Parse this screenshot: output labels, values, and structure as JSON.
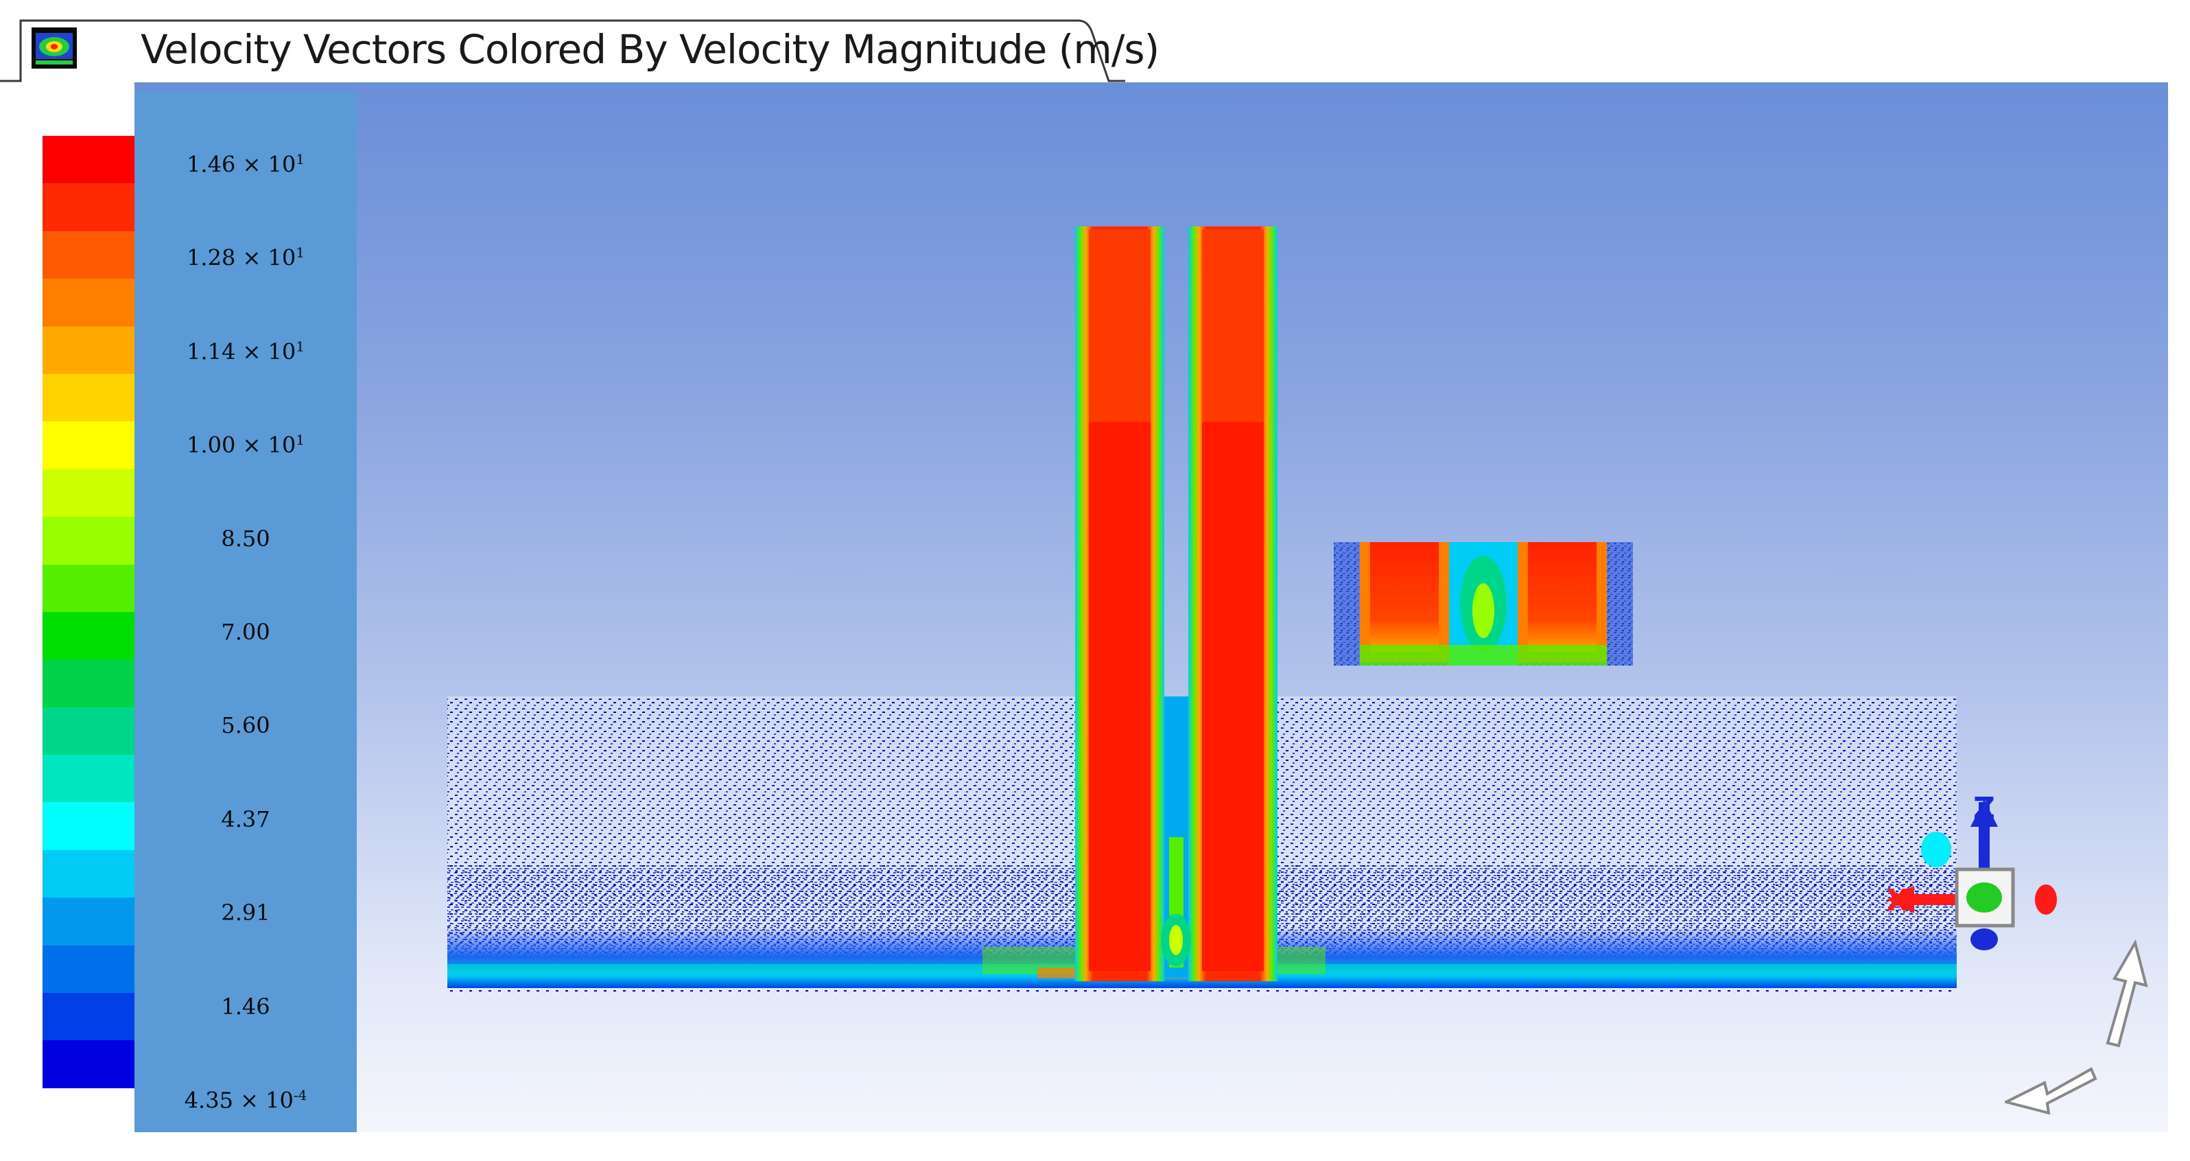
{
  "window": {
    "tab_title": "Velocity Vectors Colored By Velocity Magnitude (m/s)"
  },
  "legend": {
    "colors": [
      "#ff0000",
      "#ff2a00",
      "#ff5a00",
      "#ff7e00",
      "#ffa800",
      "#ffd200",
      "#ffff00",
      "#ccff00",
      "#99ff00",
      "#55ee00",
      "#00e000",
      "#00d34a",
      "#00d68a",
      "#00e6c0",
      "#00ffff",
      "#00ccf5",
      "#0099ee",
      "#0070ea",
      "#0040e6",
      "#0000e0"
    ],
    "ticks": [
      {
        "mantissa": "1.46 × 10",
        "exp": "1"
      },
      {
        "mantissa": "1.28 × 10",
        "exp": "1"
      },
      {
        "mantissa": "1.14 × 10",
        "exp": "1"
      },
      {
        "mantissa": "1.00 × 10",
        "exp": "1"
      },
      {
        "mantissa": "8.50",
        "exp": ""
      },
      {
        "mantissa": "7.00",
        "exp": ""
      },
      {
        "mantissa": "5.60",
        "exp": ""
      },
      {
        "mantissa": "4.37",
        "exp": ""
      },
      {
        "mantissa": "2.91",
        "exp": ""
      },
      {
        "mantissa": "1.46",
        "exp": ""
      },
      {
        "mantissa": "4.35 × 10",
        "exp": "-4"
      }
    ]
  },
  "triad": {
    "x_label": "X",
    "z_label": "Z",
    "x_color": "#ff1a1a",
    "z_color": "#1a2ad6",
    "y_color": "#22cc22"
  },
  "icons": {
    "app": "fluent-app-icon",
    "rotate": "rotate-view-arrows"
  }
}
